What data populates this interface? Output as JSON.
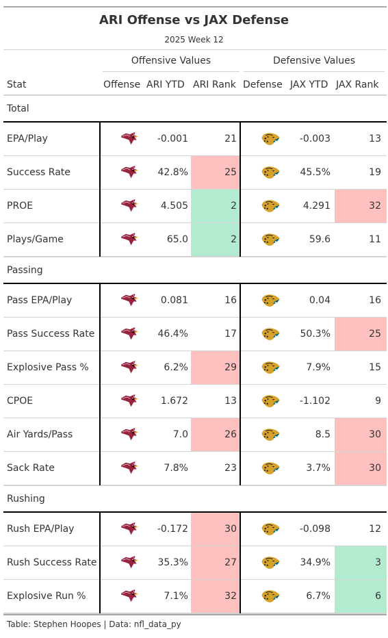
{
  "title": "ARI Offense vs JAX Defense",
  "subtitle": "2025 Week 12",
  "spanners": {
    "offense": "Offensive Values",
    "defense": "Defensive Values"
  },
  "columns": {
    "stat": "Stat",
    "offense": "Offense",
    "ari_ytd": "ARI YTD",
    "ari_rank": "ARI Rank",
    "defense": "Defense",
    "jax_ytd": "JAX YTD",
    "jax_rank": "JAX Rank"
  },
  "colors": {
    "bad": "#ffc0c0",
    "good": "#b2ebcf"
  },
  "logos": {
    "offense": "cardinals-logo",
    "defense": "jaguars-logo"
  },
  "groups": [
    {
      "name": "Total",
      "rows": [
        {
          "stat": "EPA/Play",
          "ari_ytd": "-0.001",
          "ari_rank": "21",
          "ari_hl": "",
          "jax_ytd": "-0.003",
          "jax_rank": "13",
          "jax_hl": ""
        },
        {
          "stat": "Success Rate",
          "ari_ytd": "42.8%",
          "ari_rank": "25",
          "ari_hl": "bad",
          "jax_ytd": "45.5%",
          "jax_rank": "19",
          "jax_hl": ""
        },
        {
          "stat": "PROE",
          "ari_ytd": "4.505",
          "ari_rank": "2",
          "ari_hl": "good",
          "jax_ytd": "4.291",
          "jax_rank": "32",
          "jax_hl": "bad"
        },
        {
          "stat": "Plays/Game",
          "ari_ytd": "65.0",
          "ari_rank": "2",
          "ari_hl": "good",
          "jax_ytd": "59.6",
          "jax_rank": "11",
          "jax_hl": ""
        }
      ]
    },
    {
      "name": "Passing",
      "rows": [
        {
          "stat": "Pass EPA/Play",
          "ari_ytd": "0.081",
          "ari_rank": "16",
          "ari_hl": "",
          "jax_ytd": "0.04",
          "jax_rank": "16",
          "jax_hl": ""
        },
        {
          "stat": "Pass Success Rate",
          "ari_ytd": "46.4%",
          "ari_rank": "17",
          "ari_hl": "",
          "jax_ytd": "50.3%",
          "jax_rank": "25",
          "jax_hl": "bad"
        },
        {
          "stat": "Explosive Pass %",
          "ari_ytd": "6.2%",
          "ari_rank": "29",
          "ari_hl": "bad",
          "jax_ytd": "7.9%",
          "jax_rank": "15",
          "jax_hl": ""
        },
        {
          "stat": "CPOE",
          "ari_ytd": "1.672",
          "ari_rank": "13",
          "ari_hl": "",
          "jax_ytd": "-1.102",
          "jax_rank": "9",
          "jax_hl": ""
        },
        {
          "stat": "Air Yards/Pass",
          "ari_ytd": "7.0",
          "ari_rank": "26",
          "ari_hl": "bad",
          "jax_ytd": "8.5",
          "jax_rank": "30",
          "jax_hl": "bad"
        },
        {
          "stat": "Sack Rate",
          "ari_ytd": "7.8%",
          "ari_rank": "23",
          "ari_hl": "",
          "jax_ytd": "3.7%",
          "jax_rank": "30",
          "jax_hl": "bad"
        }
      ]
    },
    {
      "name": "Rushing",
      "rows": [
        {
          "stat": "Rush EPA/Play",
          "ari_ytd": "-0.172",
          "ari_rank": "30",
          "ari_hl": "bad",
          "jax_ytd": "-0.098",
          "jax_rank": "12",
          "jax_hl": ""
        },
        {
          "stat": "Rush Success Rate",
          "ari_ytd": "35.3%",
          "ari_rank": "27",
          "ari_hl": "bad",
          "jax_ytd": "34.9%",
          "jax_rank": "3",
          "jax_hl": "good"
        },
        {
          "stat": "Explosive Run %",
          "ari_ytd": "7.1%",
          "ari_rank": "32",
          "ari_hl": "bad",
          "jax_ytd": "6.7%",
          "jax_rank": "6",
          "jax_hl": "good"
        }
      ]
    }
  ],
  "footer": "Table: Stephen Hoopes | Data: nfl_data_py"
}
